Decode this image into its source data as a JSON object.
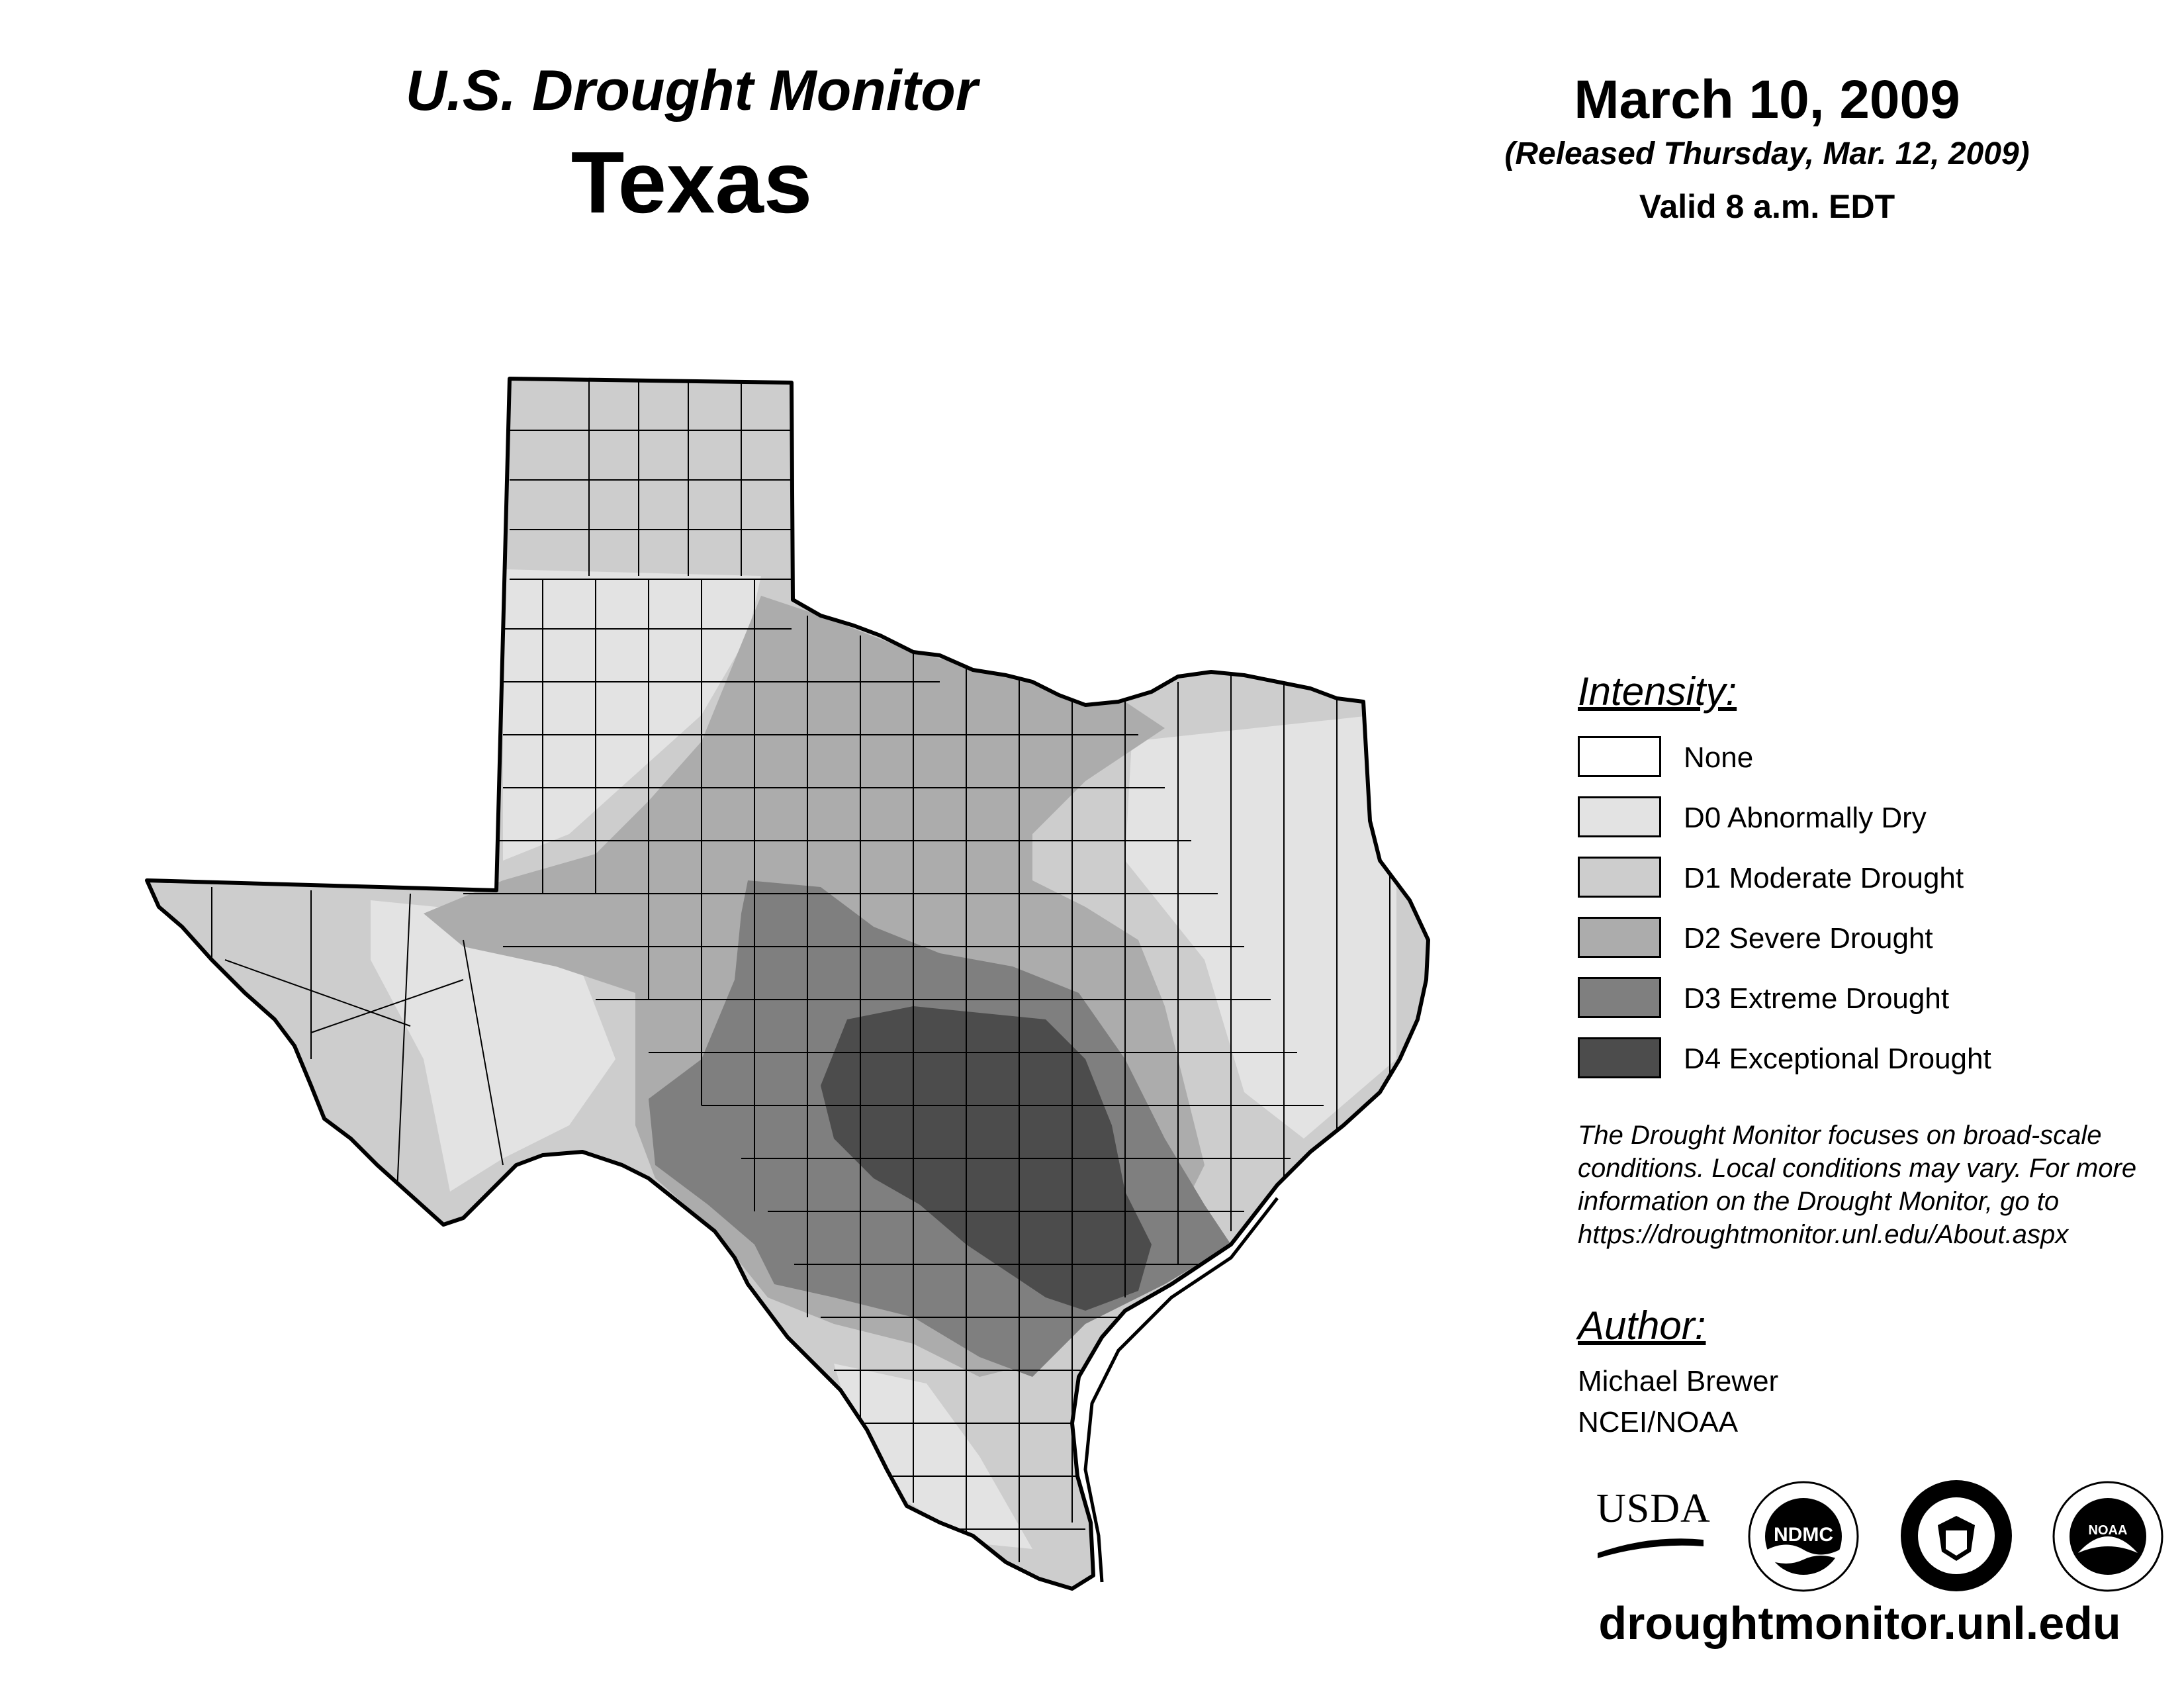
{
  "header": {
    "title": "U.S. Drought Monitor",
    "state": "Texas",
    "date": "March 10, 2009",
    "released": "(Released Thursday, Mar. 12, 2009)",
    "valid": "Valid 8 a.m. EDT"
  },
  "legend": {
    "heading": "Intensity:",
    "items": [
      {
        "label": "None",
        "color": "#ffffff"
      },
      {
        "label": "D0 Abnormally Dry",
        "color": "#e3e3e3"
      },
      {
        "label": "D1 Moderate Drought",
        "color": "#cdcdcd"
      },
      {
        "label": "D2 Severe Drought",
        "color": "#acacac"
      },
      {
        "label": "D3 Extreme Drought",
        "color": "#7f7f7f"
      },
      {
        "label": "D4 Exceptional Drought",
        "color": "#4c4c4c"
      }
    ]
  },
  "disclaimer": "The Drought Monitor focuses on broad-scale conditions. Local conditions may vary. For more information on the Drought Monitor, go to https://droughtmonitor.unl.edu/About.aspx",
  "author": {
    "heading": "Author:",
    "name": "Michael Brewer",
    "org": "NCEI/NOAA"
  },
  "logos": {
    "usda": "USDA",
    "ndmc": "NDMC",
    "noaa": "NOAA"
  },
  "website": "droughtmonitor.unl.edu"
}
